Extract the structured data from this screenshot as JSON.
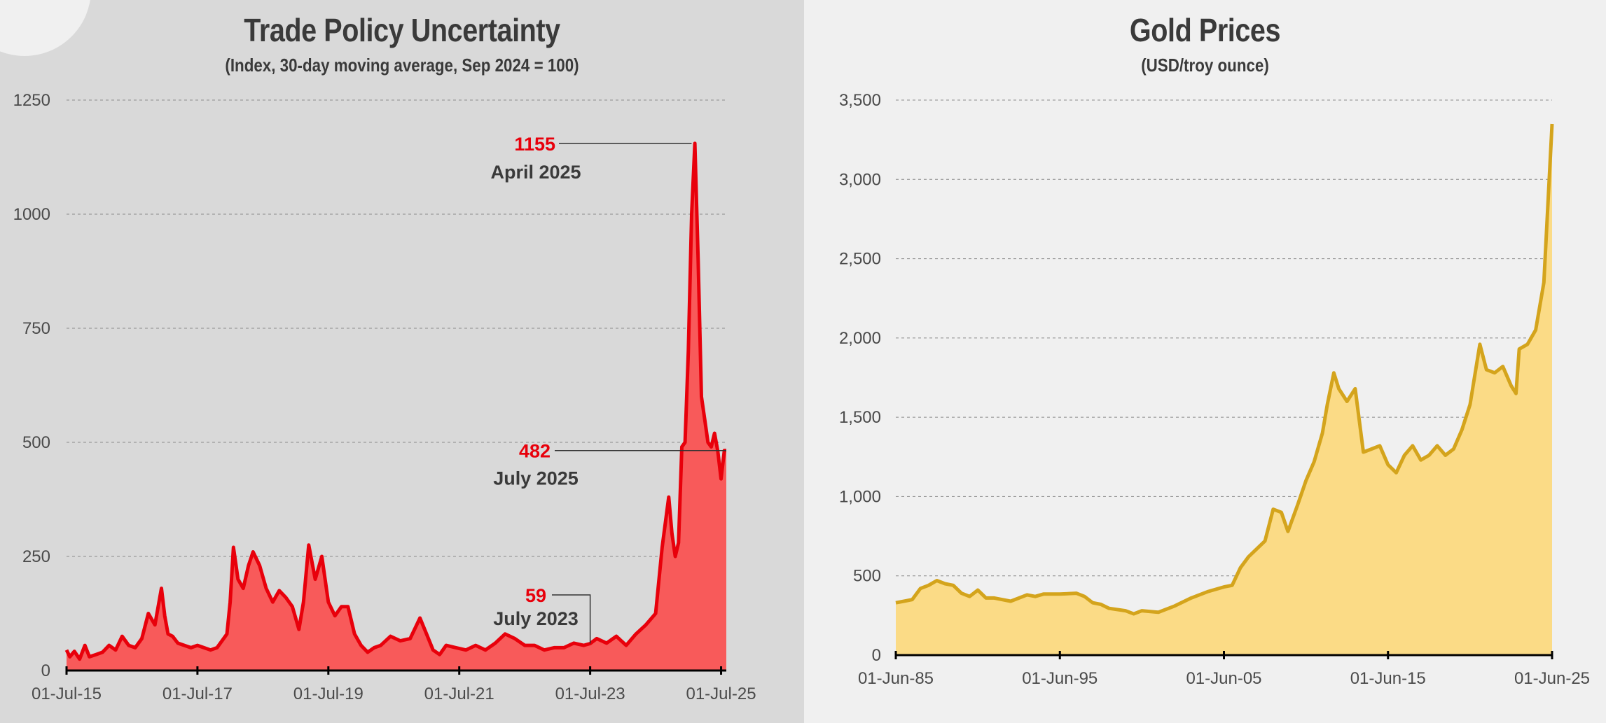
{
  "chart_data": [
    {
      "type": "area",
      "title": "Trade Policy Uncertainty",
      "subtitle": "(Index, 30-day moving average, Sep 2024 = 100)",
      "y_ticks": [
        "0",
        "250",
        "500",
        "750",
        "1000",
        "1250"
      ],
      "x_ticks": [
        "01-Jul-15",
        "01-Jul-17",
        "01-Jul-19",
        "01-Jul-21",
        "01-Jul-23",
        "01-Jul-25"
      ],
      "ylim": [
        0,
        1250
      ],
      "xlim": [
        2015.5,
        2025.58
      ],
      "grid": true,
      "colors": {
        "line": "#e8000b",
        "fill": "#f85a5a"
      },
      "series": [
        {
          "name": "Trade Policy Uncertainty",
          "x": [
            2015.5,
            2015.55,
            2015.62,
            2015.7,
            2015.78,
            2015.85,
            2015.95,
            2016.05,
            2016.15,
            2016.25,
            2016.35,
            2016.45,
            2016.55,
            2016.65,
            2016.75,
            2016.85,
            2016.95,
            2017.0,
            2017.05,
            2017.12,
            2017.2,
            2017.3,
            2017.4,
            2017.5,
            2017.6,
            2017.7,
            2017.8,
            2017.9,
            2017.95,
            2018.0,
            2018.05,
            2018.12,
            2018.2,
            2018.28,
            2018.35,
            2018.45,
            2018.55,
            2018.65,
            2018.75,
            2018.85,
            2018.95,
            2019.05,
            2019.12,
            2019.2,
            2019.3,
            2019.4,
            2019.5,
            2019.6,
            2019.7,
            2019.8,
            2019.9,
            2020.0,
            2020.1,
            2020.2,
            2020.3,
            2020.45,
            2020.6,
            2020.75,
            2020.9,
            2021.0,
            2021.1,
            2021.2,
            2021.3,
            2021.45,
            2021.6,
            2021.75,
            2021.9,
            2022.05,
            2022.2,
            2022.35,
            2022.5,
            2022.65,
            2022.8,
            2022.95,
            2023.1,
            2023.25,
            2023.4,
            2023.5,
            2023.6,
            2023.75,
            2023.9,
            2024.05,
            2024.2,
            2024.35,
            2024.5,
            2024.6,
            2024.7,
            2024.75,
            2024.8,
            2024.85,
            2024.9,
            2024.95,
            2025.0,
            2025.05,
            2025.1,
            2025.15,
            2025.2,
            2025.25,
            2025.3,
            2025.35,
            2025.4,
            2025.45,
            2025.5,
            2025.55,
            2025.58
          ],
          "values": [
            45,
            30,
            42,
            25,
            55,
            30,
            35,
            40,
            55,
            45,
            75,
            55,
            50,
            70,
            125,
            100,
            180,
            120,
            80,
            75,
            60,
            55,
            50,
            55,
            50,
            45,
            50,
            70,
            80,
            150,
            270,
            200,
            180,
            230,
            260,
            230,
            180,
            150,
            175,
            160,
            140,
            90,
            150,
            275,
            200,
            250,
            150,
            120,
            140,
            140,
            80,
            55,
            40,
            50,
            55,
            75,
            65,
            70,
            115,
            80,
            45,
            35,
            55,
            50,
            45,
            55,
            45,
            60,
            80,
            70,
            55,
            55,
            45,
            50,
            50,
            60,
            55,
            59,
            70,
            60,
            75,
            55,
            80,
            100,
            125,
            270,
            380,
            300,
            250,
            280,
            490,
            500,
            700,
            1000,
            1155,
            900,
            600,
            550,
            500,
            490,
            520,
            480,
            420,
            482,
            482
          ]
        }
      ],
      "annotations": [
        {
          "value": "1155",
          "label": "April 2025"
        },
        {
          "value": "482",
          "label": "July 2025"
        },
        {
          "value": "59",
          "label": "July 2023"
        }
      ]
    },
    {
      "type": "area",
      "title": "Gold Prices",
      "subtitle": "(USD/troy ounce)",
      "y_ticks": [
        "0",
        "500",
        "1,000",
        "1,500",
        "2,000",
        "2,500",
        "3,000",
        "3,500"
      ],
      "x_ticks": [
        "01-Jun-85",
        "01-Jun-95",
        "01-Jun-05",
        "01-Jun-15",
        "01-Jun-25"
      ],
      "ylim": [
        0,
        3500
      ],
      "xlim": [
        1985.0,
        2025.0
      ],
      "grid": true,
      "colors": {
        "line": "#d4a41c",
        "fill": "#fbdb86"
      },
      "series": [
        {
          "name": "Gold Price",
          "x": [
            1985.0,
            1985.5,
            1986.0,
            1986.5,
            1987.0,
            1987.5,
            1988.0,
            1988.5,
            1989.0,
            1989.5,
            1990.0,
            1990.5,
            1991.0,
            1992.0,
            1993.0,
            1993.5,
            1994.0,
            1995.0,
            1996.0,
            1996.5,
            1997.0,
            1997.5,
            1998.0,
            1999.0,
            1999.5,
            2000.0,
            2001.0,
            2002.0,
            2003.0,
            2004.0,
            2005.0,
            2005.5,
            2006.0,
            2006.5,
            2007.0,
            2007.5,
            2008.0,
            2008.5,
            2008.9,
            2009.5,
            2010.0,
            2010.5,
            2011.0,
            2011.3,
            2011.7,
            2012.0,
            2012.5,
            2013.0,
            2013.5,
            2014.0,
            2014.5,
            2015.0,
            2015.5,
            2016.0,
            2016.5,
            2017.0,
            2017.5,
            2018.0,
            2018.5,
            2019.0,
            2019.5,
            2020.0,
            2020.6,
            2021.0,
            2021.5,
            2022.0,
            2022.5,
            2022.8,
            2023.0,
            2023.5,
            2024.0,
            2024.5,
            2025.0
          ],
          "values": [
            330,
            340,
            350,
            420,
            440,
            470,
            450,
            440,
            390,
            370,
            410,
            360,
            360,
            340,
            380,
            370,
            385,
            385,
            390,
            370,
            330,
            320,
            295,
            280,
            260,
            280,
            270,
            310,
            360,
            400,
            430,
            440,
            550,
            620,
            670,
            720,
            920,
            900,
            780,
            950,
            1100,
            1220,
            1400,
            1580,
            1780,
            1680,
            1600,
            1680,
            1280,
            1300,
            1320,
            1200,
            1150,
            1260,
            1320,
            1230,
            1260,
            1320,
            1260,
            1300,
            1420,
            1580,
            1960,
            1800,
            1780,
            1820,
            1700,
            1650,
            1930,
            1960,
            2050,
            2350,
            3350
          ]
        }
      ]
    }
  ]
}
